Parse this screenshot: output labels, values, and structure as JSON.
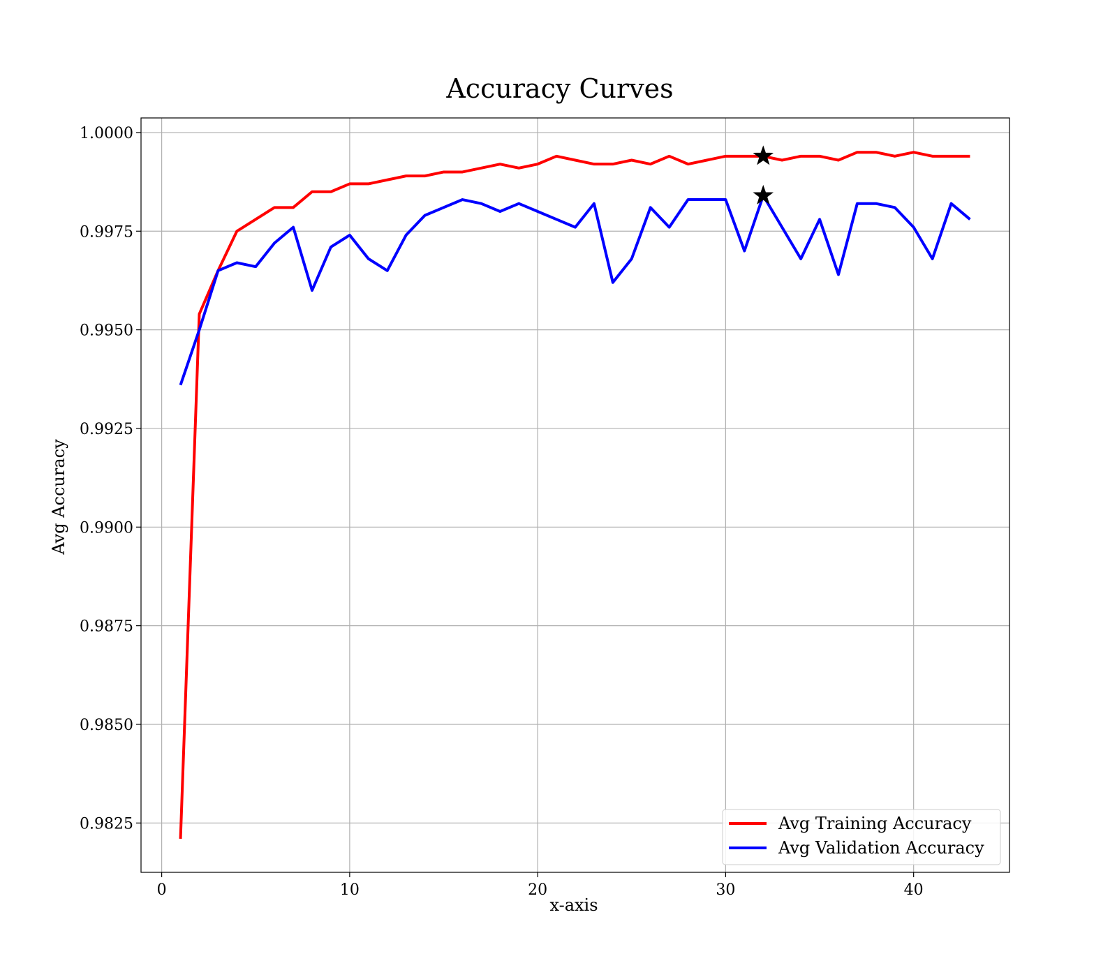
{
  "chart_data": {
    "type": "line",
    "title": "Accuracy Curves",
    "xlabel": "x-axis",
    "ylabel": "Avg Accuracy",
    "xlim": [
      -1.1,
      45.1
    ],
    "ylim": [
      0.98125,
      1.00037
    ],
    "xticks": [
      0,
      10,
      20,
      30,
      40
    ],
    "xtick_labels": [
      "0",
      "10",
      "20",
      "30",
      "40"
    ],
    "yticks": [
      0.9825,
      0.985,
      0.9875,
      0.99,
      0.9925,
      0.995,
      0.9975,
      1.0
    ],
    "ytick_labels": [
      "0.9825",
      "0.9850",
      "0.9875",
      "0.9900",
      "0.9925",
      "0.9950",
      "0.9975",
      "1.0000"
    ],
    "grid": true,
    "legend_position": "lower-right",
    "x": [
      1,
      2,
      3,
      4,
      5,
      6,
      7,
      8,
      9,
      10,
      11,
      12,
      13,
      14,
      15,
      16,
      17,
      18,
      19,
      20,
      21,
      22,
      23,
      24,
      25,
      26,
      27,
      28,
      29,
      30,
      31,
      32,
      33,
      34,
      35,
      36,
      37,
      38,
      39,
      40,
      41,
      42,
      43
    ],
    "series": [
      {
        "name": "Avg Training Accuracy",
        "color": "#ff0000",
        "values": [
          0.9821,
          0.9954,
          0.9965,
          0.9975,
          0.9978,
          0.9981,
          0.9981,
          0.9985,
          0.9985,
          0.9987,
          0.9987,
          0.9988,
          0.9989,
          0.9989,
          0.999,
          0.999,
          0.9991,
          0.9992,
          0.9991,
          0.9992,
          0.9994,
          0.9993,
          0.9992,
          0.9992,
          0.9993,
          0.9992,
          0.9994,
          0.9992,
          0.9993,
          0.9994,
          0.9994,
          0.9994,
          0.9993,
          0.9994,
          0.9994,
          0.9993,
          0.9995,
          0.9995,
          0.9994,
          0.9995,
          0.9994,
          0.9994,
          0.9994
        ]
      },
      {
        "name": "Avg Validation Accuracy",
        "color": "#0000ff",
        "values": [
          0.9936,
          0.995,
          0.9965,
          0.9967,
          0.9966,
          0.9972,
          0.9976,
          0.996,
          0.9971,
          0.9974,
          0.9968,
          0.9965,
          0.9974,
          0.9979,
          0.9981,
          0.9983,
          0.9982,
          0.998,
          0.9982,
          0.998,
          0.9978,
          0.9976,
          0.9982,
          0.9962,
          0.9968,
          0.9981,
          0.9976,
          0.9983,
          0.9983,
          0.9983,
          0.997,
          0.9984,
          0.9976,
          0.9968,
          0.9978,
          0.9964,
          0.9982,
          0.9982,
          0.9981,
          0.9976,
          0.9968,
          0.9982,
          0.9978
        ]
      }
    ],
    "markers": [
      {
        "x": 32,
        "y": 0.9994,
        "symbol": "star",
        "color": "#000000"
      },
      {
        "x": 32,
        "y": 0.9984,
        "symbol": "star",
        "color": "#000000"
      }
    ]
  }
}
